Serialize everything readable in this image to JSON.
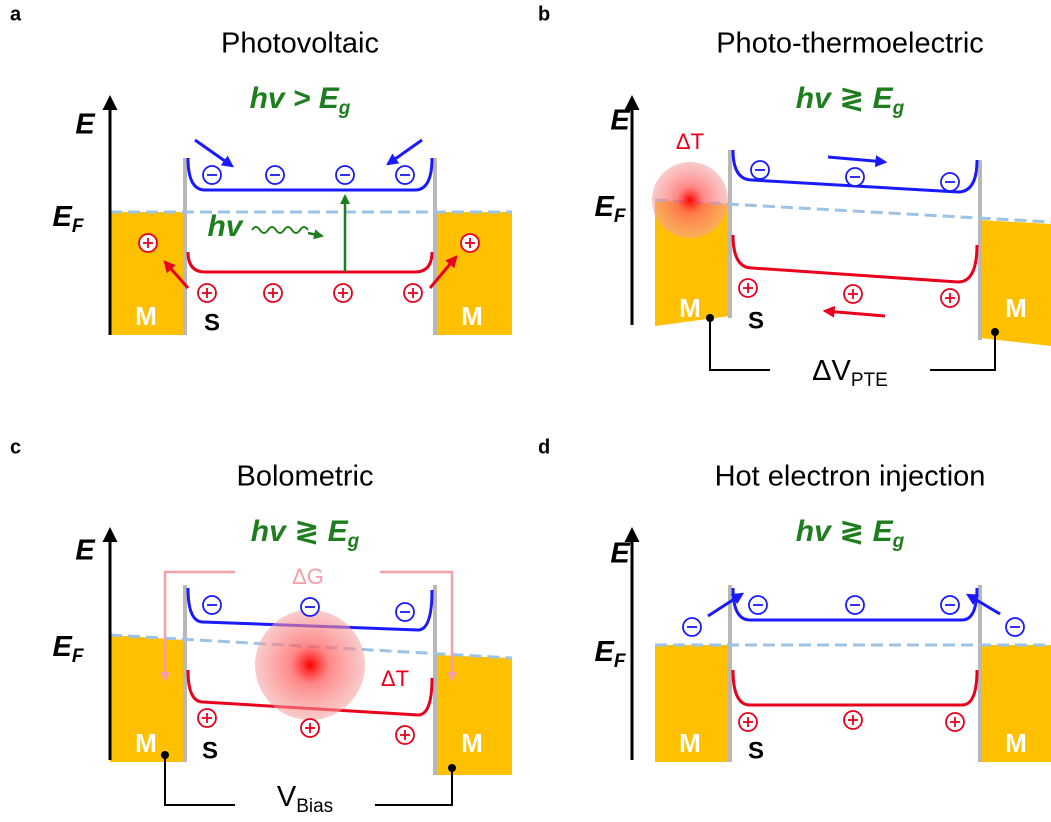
{
  "panels": [
    {
      "letter": "a",
      "title": "Photovoltaic",
      "condition": {
        "text": "hv > E",
        "subscript": "g"
      },
      "energy_axis": "E",
      "fermi_level": {
        "text": "E",
        "subscript": "F"
      },
      "metal": "M",
      "semiconductor": "S",
      "photon": "hv"
    },
    {
      "letter": "b",
      "title": "Photo-thermoelectric",
      "condition": {
        "text": "hv ≷ E",
        "subscript": "g"
      },
      "energy_axis": "E",
      "fermi_level": {
        "text": "E",
        "subscript": "F"
      },
      "metal": "M",
      "semiconductor": "S",
      "temperature": "ΔT",
      "voltage": {
        "text": "ΔV",
        "subscript": "PTE"
      }
    },
    {
      "letter": "c",
      "title": "Bolometric",
      "condition": {
        "text": "hv ≷ E",
        "subscript": "g"
      },
      "energy_axis": "E",
      "fermi_level": {
        "text": "E",
        "subscript": "F"
      },
      "metal": "M",
      "semiconductor": "S",
      "conductance": "ΔG",
      "temperature": "ΔT",
      "voltage": {
        "text": "V",
        "subscript": "Bias"
      }
    },
    {
      "letter": "d",
      "title": "Hot electron injection",
      "condition": {
        "text": "hv ≷ E",
        "subscript": "g"
      },
      "energy_axis": "E",
      "fermi_level": {
        "text": "E",
        "subscript": "F"
      },
      "metal": "M",
      "semiconductor": "S"
    }
  ]
}
